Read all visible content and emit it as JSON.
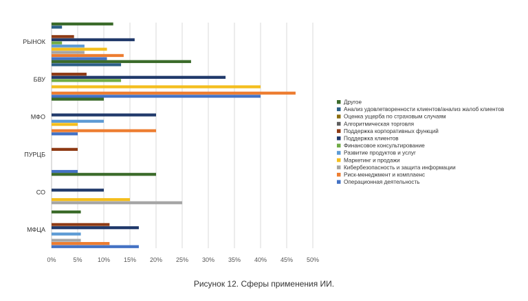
{
  "chart_data": {
    "type": "bar",
    "orientation": "horizontal",
    "caption": "Рисунок 12. Сферы применения ИИ.",
    "xlim": [
      0,
      50
    ],
    "xticks": [
      "0%",
      "5%",
      "10%",
      "15%",
      "20%",
      "25%",
      "30%",
      "35%",
      "40%",
      "45%",
      "50%"
    ],
    "tick_values": [
      0,
      5,
      10,
      15,
      20,
      25,
      30,
      35,
      40,
      45,
      50
    ],
    "grid": "vertical",
    "legend_position": "right",
    "categories": [
      "РЫНОК",
      "БВУ",
      "МФО",
      "ПУРЦБ",
      "СО",
      "МФЦА"
    ],
    "series": [
      {
        "name": "Другое",
        "color": "#3b6b2a",
        "values": [
          11.8,
          26.7,
          10.0,
          0,
          20.0,
          5.6
        ]
      },
      {
        "name": "Анализ удовлетворенности клиентов/анализ жалоб клиентов",
        "color": "#2b5f86",
        "values": [
          2.0,
          13.3,
          0,
          0,
          0,
          0
        ]
      },
      {
        "name": "Оценка ущерба по страховым случаям",
        "color": "#8a6d10",
        "values": [
          0,
          0,
          0,
          0,
          0,
          0
        ]
      },
      {
        "name": "Алгоритмическая торговля",
        "color": "#5e5e5e",
        "values": [
          0,
          0,
          0,
          0,
          0,
          0
        ]
      },
      {
        "name": "Поддержка корпоративных функций",
        "color": "#8e3a14",
        "values": [
          4.3,
          6.7,
          0,
          5.0,
          0,
          11.1
        ]
      },
      {
        "name": "Поддержка клиентов",
        "color": "#213a6b",
        "values": [
          15.9,
          33.3,
          20.0,
          0,
          10.0,
          16.7
        ]
      },
      {
        "name": "Финансовое консультирование",
        "color": "#6fab45",
        "values": [
          2.0,
          13.3,
          0,
          0,
          0,
          0
        ]
      },
      {
        "name": "Развитие продуктов и услуг",
        "color": "#5d9bd5",
        "values": [
          6.3,
          0,
          10.0,
          0,
          0,
          5.6
        ]
      },
      {
        "name": "Маркетинг и продажи",
        "color": "#f4be1e",
        "values": [
          10.6,
          40.0,
          5.0,
          0,
          15.0,
          0
        ]
      },
      {
        "name": "Кибербезопасность и защита информации",
        "color": "#a5a5a5",
        "values": [
          6.3,
          0,
          0,
          0,
          25.0,
          5.6
        ]
      },
      {
        "name": "Риск-менеджмент и комплаенс",
        "color": "#ed7d31",
        "values": [
          13.8,
          46.7,
          20.0,
          0,
          0,
          11.1
        ]
      },
      {
        "name": "Операционная деятельность",
        "color": "#4472c4",
        "values": [
          10.6,
          40.0,
          5.0,
          5.0,
          0,
          16.7
        ]
      }
    ]
  }
}
